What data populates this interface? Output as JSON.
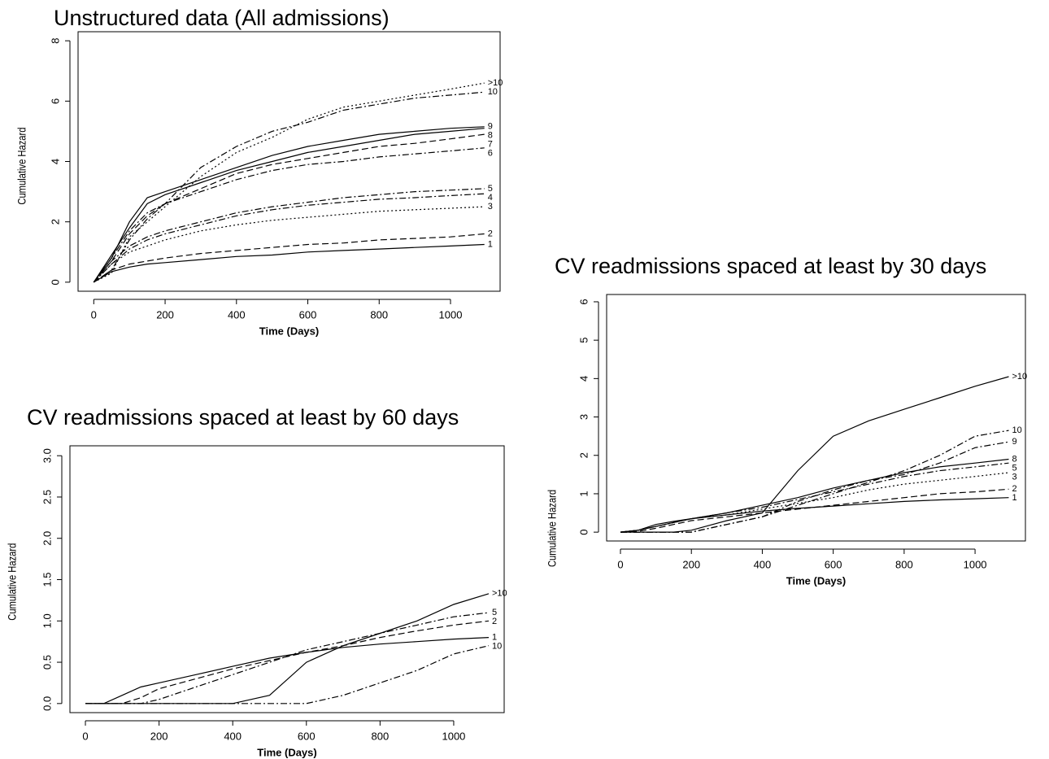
{
  "chart_data": [
    {
      "type": "line",
      "title": "Unstructured data (All admissions)",
      "x_label": "Time (Days)",
      "y_label": "Cumulative Hazard",
      "xlim": [
        -44,
        1139
      ],
      "ylim": [
        -0.3,
        8.3
      ],
      "xticks": [
        0,
        200,
        400,
        600,
        800,
        1000
      ],
      "yticks": [
        0,
        2,
        4,
        6,
        8
      ],
      "x": [
        0,
        50,
        100,
        150,
        200,
        300,
        400,
        500,
        600,
        700,
        800,
        900,
        1000,
        1095
      ],
      "series": [
        {
          "name": ">10",
          "color": "#000000",
          "line_style": "dotted",
          "values": [
            0,
            0.3,
            1.5,
            2.0,
            2.5,
            3.5,
            4.3,
            4.8,
            5.4,
            5.8,
            6.0,
            6.2,
            6.4,
            6.6
          ]
        },
        {
          "name": "10",
          "color": "#000000",
          "line_style": "dashdot",
          "values": [
            0,
            0.4,
            1.4,
            2.1,
            2.6,
            3.8,
            4.5,
            5.0,
            5.3,
            5.7,
            5.9,
            6.1,
            6.2,
            6.3
          ]
        },
        {
          "name": "9",
          "color": "#000000",
          "line_style": "solid",
          "values": [
            0,
            0.8,
            2.0,
            2.8,
            3.0,
            3.4,
            3.8,
            4.2,
            4.5,
            4.7,
            4.9,
            5.0,
            5.1,
            5.15
          ]
        },
        {
          "name": "8",
          "color": "#000000",
          "line_style": "solid",
          "values": [
            0,
            0.9,
            1.8,
            2.6,
            2.9,
            3.3,
            3.7,
            4.0,
            4.3,
            4.5,
            4.7,
            4.9,
            5.0,
            5.1
          ]
        },
        {
          "name": "7",
          "color": "#000000",
          "line_style": "dashed",
          "values": [
            0,
            0.7,
            1.6,
            2.2,
            2.6,
            3.1,
            3.6,
            3.9,
            4.1,
            4.3,
            4.5,
            4.6,
            4.75,
            4.9
          ]
        },
        {
          "name": "6",
          "color": "#000000",
          "line_style": "dashdot",
          "values": [
            0,
            0.8,
            1.7,
            2.3,
            2.6,
            3.0,
            3.4,
            3.7,
            3.9,
            4.0,
            4.15,
            4.25,
            4.35,
            4.45
          ]
        },
        {
          "name": "5",
          "color": "#000000",
          "line_style": "dashdot",
          "values": [
            0,
            0.7,
            1.2,
            1.5,
            1.7,
            2.0,
            2.3,
            2.5,
            2.65,
            2.8,
            2.9,
            3.0,
            3.05,
            3.1
          ]
        },
        {
          "name": "4",
          "color": "#000000",
          "line_style": "dashdot",
          "values": [
            0,
            0.6,
            1.1,
            1.4,
            1.6,
            1.9,
            2.2,
            2.4,
            2.55,
            2.65,
            2.75,
            2.8,
            2.87,
            2.93
          ]
        },
        {
          "name": "3",
          "color": "#000000",
          "line_style": "dotted",
          "values": [
            0,
            0.6,
            1.0,
            1.2,
            1.4,
            1.7,
            1.9,
            2.05,
            2.15,
            2.25,
            2.35,
            2.4,
            2.45,
            2.5
          ]
        },
        {
          "name": "2",
          "color": "#000000",
          "line_style": "dashed",
          "values": [
            0,
            0.4,
            0.6,
            0.7,
            0.8,
            0.95,
            1.05,
            1.15,
            1.25,
            1.3,
            1.4,
            1.45,
            1.5,
            1.6
          ]
        },
        {
          "name": "1",
          "color": "#000000",
          "line_style": "solid",
          "values": [
            0,
            0.35,
            0.5,
            0.6,
            0.65,
            0.75,
            0.85,
            0.9,
            1.0,
            1.05,
            1.1,
            1.15,
            1.2,
            1.25
          ]
        }
      ]
    },
    {
      "type": "line",
      "title": "CV readmissions spaced at least by 30 days",
      "x_label": "Time (Days)",
      "y_label": "Cumulative Hazard",
      "xlim": [
        -39,
        1142
      ],
      "ylim": [
        -0.23,
        6.19
      ],
      "xticks": [
        0,
        200,
        400,
        600,
        800,
        1000
      ],
      "yticks": [
        0,
        1,
        2,
        3,
        4,
        5,
        6
      ],
      "x": [
        0,
        50,
        100,
        150,
        200,
        300,
        400,
        500,
        600,
        700,
        800,
        900,
        1000,
        1095
      ],
      "series": [
        {
          "name": ">10",
          "color": "#000000",
          "line_style": "solid",
          "values": [
            0,
            0,
            0,
            0,
            0.05,
            0.3,
            0.5,
            1.6,
            2.5,
            2.9,
            3.2,
            3.5,
            3.8,
            4.05
          ]
        },
        {
          "name": "10",
          "color": "#000000",
          "line_style": "dashdot",
          "values": [
            0,
            0,
            0,
            0,
            0,
            0.2,
            0.4,
            0.7,
            1.0,
            1.3,
            1.6,
            2.0,
            2.5,
            2.65
          ]
        },
        {
          "name": "9",
          "color": "#000000",
          "line_style": "dashdot",
          "values": [
            0,
            0,
            0,
            0,
            0,
            0.2,
            0.4,
            0.8,
            1.1,
            1.35,
            1.5,
            1.8,
            2.2,
            2.35
          ]
        },
        {
          "name": "8",
          "color": "#000000",
          "line_style": "solid",
          "values": [
            0,
            0.05,
            0.15,
            0.25,
            0.35,
            0.5,
            0.7,
            0.9,
            1.15,
            1.35,
            1.55,
            1.7,
            1.8,
            1.9
          ]
        },
        {
          "name": "5",
          "color": "#000000",
          "line_style": "dashdot",
          "values": [
            0,
            0.05,
            0.15,
            0.25,
            0.35,
            0.5,
            0.65,
            0.85,
            1.05,
            1.25,
            1.45,
            1.6,
            1.7,
            1.8
          ]
        },
        {
          "name": "3",
          "color": "#000000",
          "line_style": "dotted",
          "values": [
            0,
            0.05,
            0.15,
            0.25,
            0.35,
            0.45,
            0.6,
            0.75,
            0.9,
            1.1,
            1.25,
            1.35,
            1.45,
            1.55
          ]
        },
        {
          "name": "2",
          "color": "#000000",
          "line_style": "dashed",
          "values": [
            0,
            0.02,
            0.1,
            0.2,
            0.3,
            0.4,
            0.5,
            0.6,
            0.7,
            0.8,
            0.9,
            1.0,
            1.05,
            1.12
          ]
        },
        {
          "name": "1",
          "color": "#000000",
          "line_style": "solid",
          "values": [
            0,
            0.05,
            0.2,
            0.28,
            0.35,
            0.45,
            0.55,
            0.62,
            0.68,
            0.74,
            0.8,
            0.84,
            0.87,
            0.9
          ]
        }
      ]
    },
    {
      "type": "line",
      "title": "CV readmissions spaced at least by 60 days",
      "x_label": "Time (Days)",
      "y_label": "Cumulative Hazard",
      "xlim": [
        -42,
        1137
      ],
      "ylim": [
        -0.11,
        3.12
      ],
      "xticks": [
        0,
        200,
        400,
        600,
        800,
        1000
      ],
      "yticks": [
        {
          "value": 0,
          "label": "0.0"
        },
        0.5,
        {
          "value": 1,
          "label": "1.0"
        },
        1.5,
        {
          "value": 2,
          "label": "2.0"
        },
        2.5,
        {
          "value": 3,
          "label": "3.0"
        }
      ],
      "x": [
        0,
        50,
        100,
        150,
        200,
        300,
        400,
        500,
        600,
        700,
        800,
        900,
        1000,
        1095
      ],
      "series": [
        {
          "name": ">10",
          "color": "#000000",
          "line_style": "solid",
          "values": [
            0,
            0,
            0,
            0,
            0,
            0,
            0,
            0.1,
            0.5,
            0.7,
            0.85,
            1.0,
            1.2,
            1.33
          ]
        },
        {
          "name": "5",
          "color": "#000000",
          "line_style": "dashdot",
          "values": [
            0,
            0,
            0,
            0,
            0.05,
            0.2,
            0.35,
            0.5,
            0.65,
            0.75,
            0.85,
            0.95,
            1.05,
            1.1
          ]
        },
        {
          "name": "2",
          "color": "#000000",
          "line_style": "dashed",
          "values": [
            0,
            0,
            0,
            0.07,
            0.18,
            0.3,
            0.42,
            0.52,
            0.62,
            0.7,
            0.8,
            0.88,
            0.95,
            1.0
          ]
        },
        {
          "name": "1",
          "color": "#000000",
          "line_style": "solid",
          "values": [
            0,
            0,
            0.1,
            0.2,
            0.25,
            0.35,
            0.45,
            0.55,
            0.62,
            0.68,
            0.72,
            0.75,
            0.78,
            0.8
          ]
        },
        {
          "name": "10",
          "color": "#000000",
          "line_style": "dashdot",
          "values": [
            0,
            0,
            0,
            0,
            0,
            0,
            0,
            0,
            0,
            0.1,
            0.25,
            0.4,
            0.6,
            0.7
          ]
        }
      ]
    }
  ]
}
